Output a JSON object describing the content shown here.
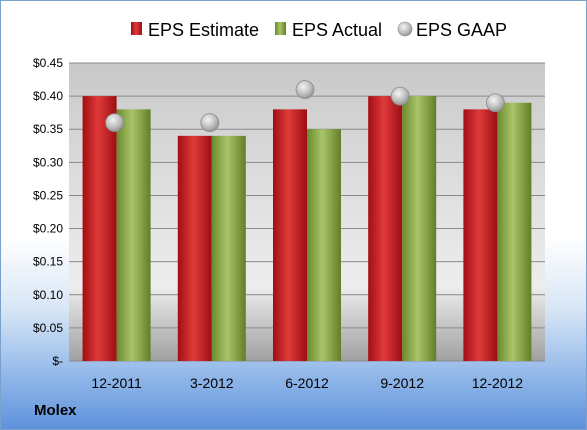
{
  "company": "Molex",
  "chart_data": {
    "type": "bar",
    "categories": [
      "12-2011",
      "3-2012",
      "6-2012",
      "9-2012",
      "12-2012"
    ],
    "series": [
      {
        "name": "EPS Estimate",
        "kind": "bar",
        "values": [
          0.4,
          0.34,
          0.38,
          0.4,
          0.38
        ]
      },
      {
        "name": "EPS Actual",
        "kind": "bar",
        "values": [
          0.38,
          0.34,
          0.35,
          0.4,
          0.39
        ]
      },
      {
        "name": "EPS GAAP",
        "kind": "scatter",
        "values": [
          0.36,
          0.36,
          0.41,
          0.4,
          0.39
        ]
      }
    ],
    "ylim": [
      0,
      0.45
    ],
    "y_ticks": [
      0,
      0.05,
      0.1,
      0.15,
      0.2,
      0.25,
      0.3,
      0.35,
      0.4,
      0.45
    ],
    "y_tick_labels": [
      "$-",
      "$0.05",
      "$0.10",
      "$0.15",
      "$0.20",
      "$0.25",
      "$0.30",
      "$0.35",
      "$0.40",
      "$0.45"
    ],
    "grid": true,
    "legend_position": "top",
    "colors": {
      "estimate": "#c0161e",
      "actual": "#7f9f3a",
      "gaap": "#b9b9b9"
    }
  }
}
